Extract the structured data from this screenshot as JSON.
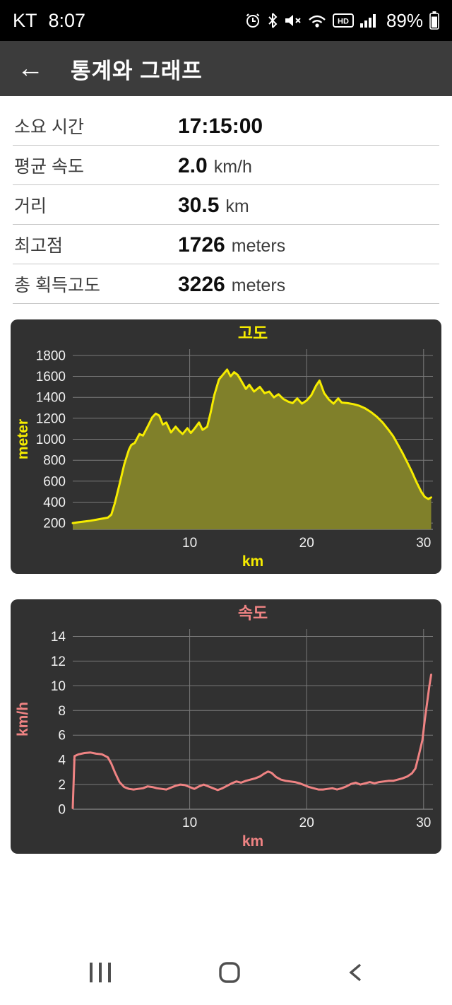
{
  "status_bar": {
    "carrier": "KT",
    "time": "8:07",
    "battery": "89%",
    "icons": [
      "alarm-icon",
      "bluetooth-icon",
      "mute-icon",
      "wifi-icon",
      "hd-icon",
      "signal-icon",
      "battery-icon"
    ]
  },
  "header": {
    "title": "통계와 그래프",
    "back_label": "←"
  },
  "stats": {
    "rows": [
      {
        "label": "소요 시간",
        "value": "17:15:00",
        "unit": ""
      },
      {
        "label": "평균 속도",
        "value": "2.0",
        "unit": "km/h"
      },
      {
        "label": "거리",
        "value": "30.5",
        "unit": "km"
      },
      {
        "label": "최고점",
        "value": "1726",
        "unit": "meters"
      },
      {
        "label": "총 획득고도",
        "value": "3226",
        "unit": "meters"
      }
    ]
  },
  "chart_data": [
    {
      "type": "area",
      "title": "고도",
      "xlabel": "km",
      "ylabel": "meter",
      "xlim": [
        0,
        30.8
      ],
      "ylim": [
        140,
        1860
      ],
      "x_ticks": [
        10,
        20,
        30
      ],
      "y_ticks": [
        200,
        400,
        600,
        800,
        1000,
        1200,
        1400,
        1600,
        1800
      ],
      "grid": true,
      "legend": "none",
      "line_color": "#f6ec00",
      "fill_color": "#80802a",
      "grid_color": "#7a7a7a",
      "tick_color": "#f2f2f2",
      "background": "#313131",
      "x": [
        0,
        0.5,
        1,
        1.5,
        2,
        2.5,
        3,
        3.3,
        3.6,
        4,
        4.4,
        4.8,
        5,
        5.3,
        5.7,
        6,
        6.4,
        6.8,
        7.1,
        7.4,
        7.7,
        8,
        8.4,
        8.8,
        9.1,
        9.4,
        9.8,
        10.1,
        10.4,
        10.8,
        11.1,
        11.5,
        11.8,
        12.1,
        12.5,
        12.8,
        13.2,
        13.5,
        13.8,
        14.1,
        14.4,
        14.8,
        15.1,
        15.5,
        16,
        16.4,
        16.8,
        17.2,
        17.6,
        18,
        18.4,
        18.8,
        19.2,
        19.6,
        20,
        20.4,
        20.8,
        21.1,
        21.5,
        21.9,
        22.3,
        22.7,
        23,
        23.5,
        24,
        24.5,
        25,
        25.5,
        26,
        26.5,
        27,
        27.4,
        27.8,
        28.2,
        28.6,
        29,
        29.4,
        29.8,
        30.1,
        30.4,
        30.65
      ],
      "y": [
        200,
        208,
        215,
        222,
        232,
        242,
        252,
        280,
        390,
        570,
        760,
        900,
        945,
        965,
        1050,
        1035,
        1120,
        1210,
        1245,
        1225,
        1140,
        1160,
        1065,
        1120,
        1080,
        1050,
        1105,
        1060,
        1100,
        1160,
        1090,
        1120,
        1260,
        1420,
        1570,
        1610,
        1665,
        1600,
        1640,
        1615,
        1560,
        1480,
        1520,
        1455,
        1500,
        1440,
        1455,
        1400,
        1430,
        1385,
        1360,
        1345,
        1390,
        1340,
        1370,
        1420,
        1510,
        1560,
        1440,
        1380,
        1340,
        1390,
        1350,
        1345,
        1335,
        1320,
        1295,
        1260,
        1215,
        1160,
        1090,
        1030,
        950,
        870,
        780,
        690,
        590,
        500,
        450,
        430,
        445
      ]
    },
    {
      "type": "line",
      "title": "속도",
      "xlabel": "km",
      "ylabel": "km/h",
      "xlim": [
        0,
        30.8
      ],
      "ylim": [
        0,
        14.6
      ],
      "x_ticks": [
        10,
        20,
        30
      ],
      "y_ticks": [
        0,
        2,
        4,
        6,
        8,
        10,
        12,
        14
      ],
      "grid": true,
      "legend": "none",
      "line_color": "#ef8383",
      "fill_color": "none",
      "grid_color": "#7a7a7a",
      "tick_color": "#f2f2f2",
      "background": "#313131",
      "x": [
        0,
        0.15,
        0.5,
        1,
        1.5,
        2,
        2.5,
        3,
        3.3,
        3.6,
        4,
        4.4,
        4.8,
        5.2,
        5.6,
        6,
        6.4,
        6.8,
        7.2,
        7.6,
        8,
        8.4,
        8.8,
        9.2,
        9.6,
        10,
        10.4,
        10.8,
        11.2,
        11.6,
        12,
        12.4,
        12.8,
        13.2,
        13.6,
        14,
        14.4,
        14.8,
        15.2,
        15.6,
        16,
        16.4,
        16.7,
        17,
        17.4,
        17.8,
        18.2,
        18.6,
        19,
        19.4,
        19.8,
        20.2,
        20.6,
        21,
        21.4,
        21.8,
        22.2,
        22.6,
        23,
        23.4,
        23.8,
        24.2,
        24.6,
        25,
        25.4,
        25.8,
        26.2,
        26.6,
        27,
        27.4,
        27.8,
        28.2,
        28.6,
        29,
        29.3,
        29.6,
        29.9,
        30.1,
        30.3,
        30.5,
        30.65
      ],
      "y": [
        0.1,
        4.3,
        4.45,
        4.55,
        4.6,
        4.5,
        4.45,
        4.2,
        3.7,
        3.0,
        2.2,
        1.8,
        1.65,
        1.6,
        1.65,
        1.7,
        1.85,
        1.8,
        1.7,
        1.65,
        1.6,
        1.75,
        1.9,
        2.0,
        1.95,
        1.8,
        1.65,
        1.85,
        2.0,
        1.85,
        1.7,
        1.55,
        1.7,
        1.9,
        2.1,
        2.25,
        2.15,
        2.3,
        2.4,
        2.5,
        2.65,
        2.9,
        3.05,
        2.95,
        2.6,
        2.4,
        2.3,
        2.25,
        2.2,
        2.1,
        1.95,
        1.8,
        1.7,
        1.6,
        1.6,
        1.65,
        1.7,
        1.6,
        1.7,
        1.85,
        2.05,
        2.15,
        2.0,
        2.1,
        2.2,
        2.1,
        2.2,
        2.25,
        2.3,
        2.3,
        2.4,
        2.5,
        2.65,
        2.9,
        3.3,
        4.4,
        5.6,
        7.2,
        8.6,
        10.0,
        10.9
      ]
    }
  ],
  "nav_bar": {
    "icons": [
      "recents-icon",
      "home-icon",
      "back-icon"
    ]
  }
}
